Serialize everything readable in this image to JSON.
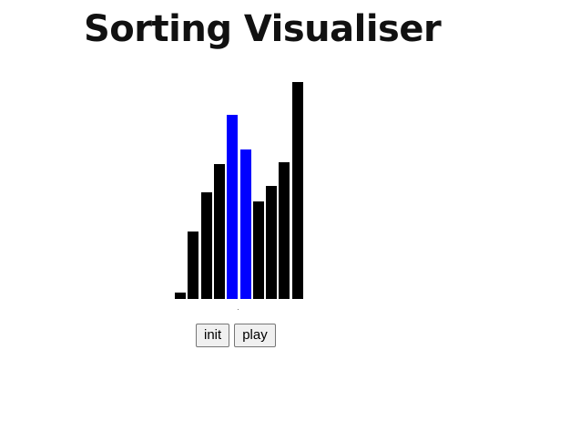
{
  "page": {
    "title": "Sorting Visualiser"
  },
  "visualiser": {
    "default_color": "#000000",
    "highlight_color": "#0000ff",
    "max_value": 100,
    "values": [
      3,
      31,
      49,
      62,
      85,
      69,
      45,
      52,
      63,
      100
    ],
    "highlighted": [
      4,
      5
    ]
  },
  "controls": {
    "init_label": "init",
    "play_label": "play"
  }
}
